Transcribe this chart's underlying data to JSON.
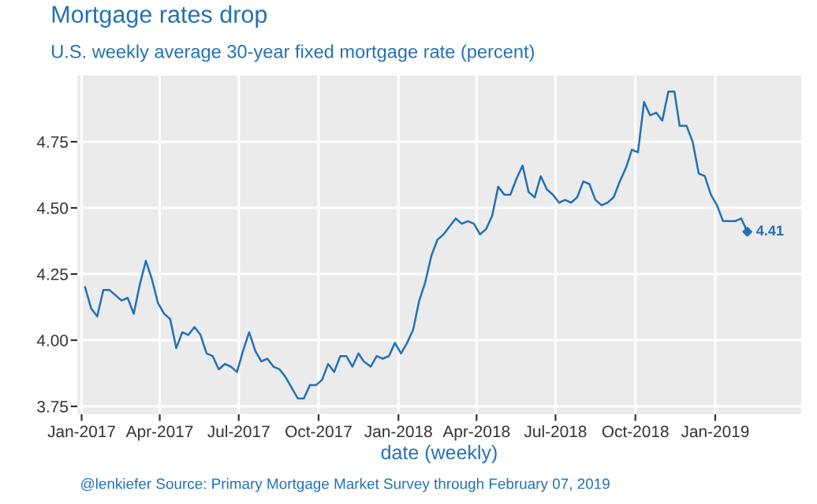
{
  "chart_data": {
    "type": "line",
    "title": "Mortgage rates drop",
    "subtitle": "U.S. weekly average 30-year fixed mortgage rate (percent)",
    "xlabel": "date (weekly)",
    "x": [
      "2017-01-05",
      "2017-01-12",
      "2017-01-19",
      "2017-01-26",
      "2017-02-02",
      "2017-02-09",
      "2017-02-16",
      "2017-02-23",
      "2017-03-02",
      "2017-03-09",
      "2017-03-16",
      "2017-03-23",
      "2017-03-30",
      "2017-04-06",
      "2017-04-13",
      "2017-04-20",
      "2017-04-27",
      "2017-05-04",
      "2017-05-11",
      "2017-05-18",
      "2017-05-25",
      "2017-06-01",
      "2017-06-08",
      "2017-06-15",
      "2017-06-22",
      "2017-06-29",
      "2017-07-06",
      "2017-07-13",
      "2017-07-20",
      "2017-07-27",
      "2017-08-03",
      "2017-08-10",
      "2017-08-17",
      "2017-08-24",
      "2017-08-31",
      "2017-09-07",
      "2017-09-14",
      "2017-09-21",
      "2017-09-28",
      "2017-10-05",
      "2017-10-12",
      "2017-10-19",
      "2017-10-26",
      "2017-11-02",
      "2017-11-09",
      "2017-11-16",
      "2017-11-22",
      "2017-11-30",
      "2017-12-07",
      "2017-12-14",
      "2017-12-21",
      "2017-12-28",
      "2018-01-04",
      "2018-01-11",
      "2018-01-18",
      "2018-01-25",
      "2018-02-01",
      "2018-02-08",
      "2018-02-15",
      "2018-02-22",
      "2018-03-01",
      "2018-03-08",
      "2018-03-15",
      "2018-03-22",
      "2018-03-29",
      "2018-04-05",
      "2018-04-12",
      "2018-04-19",
      "2018-04-26",
      "2018-05-03",
      "2018-05-10",
      "2018-05-17",
      "2018-05-24",
      "2018-05-31",
      "2018-06-07",
      "2018-06-14",
      "2018-06-21",
      "2018-06-28",
      "2018-07-05",
      "2018-07-12",
      "2018-07-19",
      "2018-07-26",
      "2018-08-02",
      "2018-08-09",
      "2018-08-16",
      "2018-08-23",
      "2018-08-30",
      "2018-09-06",
      "2018-09-13",
      "2018-09-20",
      "2018-09-27",
      "2018-10-04",
      "2018-10-11",
      "2018-10-18",
      "2018-10-25",
      "2018-11-01",
      "2018-11-08",
      "2018-11-15",
      "2018-11-21",
      "2018-11-29",
      "2018-12-06",
      "2018-12-13",
      "2018-12-20",
      "2018-12-27",
      "2019-01-03",
      "2019-01-10",
      "2019-01-17",
      "2019-01-24",
      "2019-01-31",
      "2019-02-07"
    ],
    "series": [
      {
        "color": "#2171b5",
        "values": [
          4.2,
          4.12,
          4.09,
          4.19,
          4.19,
          4.17,
          4.15,
          4.16,
          4.1,
          4.21,
          4.3,
          4.23,
          4.14,
          4.1,
          4.08,
          3.97,
          4.03,
          4.02,
          4.05,
          4.02,
          3.95,
          3.94,
          3.89,
          3.91,
          3.9,
          3.88,
          3.96,
          4.03,
          3.96,
          3.92,
          3.93,
          3.9,
          3.89,
          3.86,
          3.82,
          3.78,
          3.78,
          3.83,
          3.83,
          3.85,
          3.91,
          3.88,
          3.94,
          3.94,
          3.9,
          3.95,
          3.92,
          3.9,
          3.94,
          3.93,
          3.94,
          3.99,
          3.95,
          3.99,
          4.04,
          4.15,
          4.22,
          4.32,
          4.38,
          4.4,
          4.43,
          4.46,
          4.44,
          4.45,
          4.44,
          4.4,
          4.42,
          4.47,
          4.58,
          4.55,
          4.55,
          4.61,
          4.66,
          4.56,
          4.54,
          4.62,
          4.57,
          4.55,
          4.52,
          4.53,
          4.52,
          4.54,
          4.6,
          4.59,
          4.53,
          4.51,
          4.52,
          4.54,
          4.6,
          4.65,
          4.72,
          4.71,
          4.9,
          4.85,
          4.86,
          4.83,
          4.94,
          4.94,
          4.81,
          4.81,
          4.75,
          4.63,
          4.62,
          4.55,
          4.51,
          4.45,
          4.45,
          4.45,
          4.46,
          4.41
        ]
      },
      {
        "type": "scatter",
        "color": "#2171b5",
        "marker": "diamond",
        "x": [
          "2019-02-07"
        ],
        "values": [
          4.41
        ]
      }
    ],
    "annotations": [
      {
        "text": "4.41",
        "x": "2019-02-07",
        "y": 4.41
      },
      "@lenkiefer Source: Primary Mortgage Market Survey through February 07, 2019"
    ],
    "xlim": [
      "2016-12-27",
      "2019-04-10"
    ],
    "ylim": [
      3.72,
      5.0
    ],
    "xticks": [
      {
        "value": "2017-01-01",
        "label": "Jan-2017"
      },
      {
        "value": "2017-04-01",
        "label": "Apr-2017"
      },
      {
        "value": "2017-07-01",
        "label": "Jul-2017"
      },
      {
        "value": "2017-10-01",
        "label": "Oct-2017"
      },
      {
        "value": "2018-01-01",
        "label": "Jan-2018"
      },
      {
        "value": "2018-04-01",
        "label": "Apr-2018"
      },
      {
        "value": "2018-07-01",
        "label": "Jul-2018"
      },
      {
        "value": "2018-10-01",
        "label": "Oct-2018"
      },
      {
        "value": "2019-01-01",
        "label": "Jan-2019"
      }
    ],
    "yticks": [
      {
        "value": 3.75,
        "label": "3.75"
      },
      {
        "value": 4.0,
        "label": "4.00"
      },
      {
        "value": 4.25,
        "label": "4.25"
      },
      {
        "value": 4.5,
        "label": "4.50"
      },
      {
        "value": 4.75,
        "label": "4.75"
      }
    ],
    "grid": true,
    "legend": false
  }
}
